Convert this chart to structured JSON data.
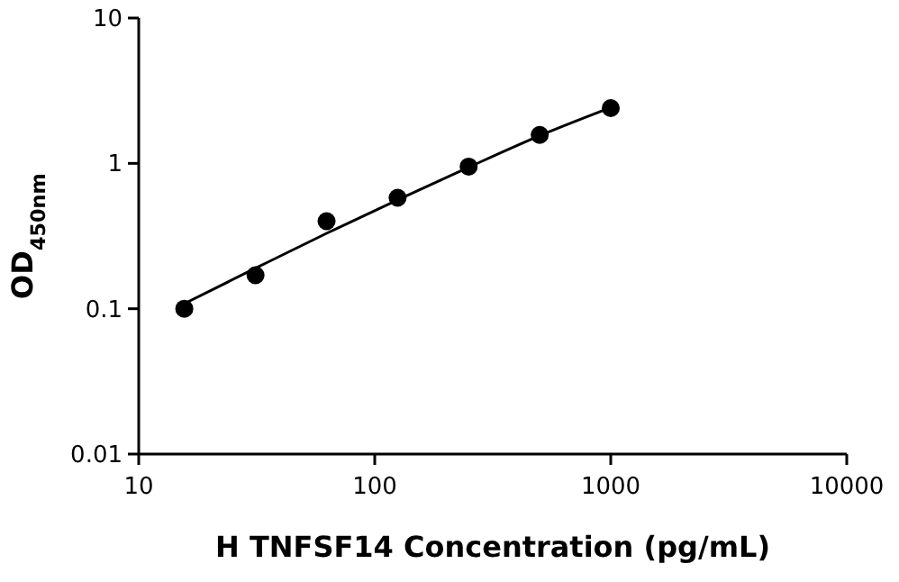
{
  "chart_data": {
    "type": "scatter",
    "xlabel": "H TNFSF14 Concentration (pg/mL)",
    "ylabel": "OD$_{450nm}$",
    "log": "xy",
    "xlim": [
      10,
      10000
    ],
    "ylim": [
      0.01,
      10
    ],
    "xticks": [
      10,
      100,
      1000,
      10000
    ],
    "yticks": [
      0.01,
      0.1,
      1,
      10
    ],
    "grid": false,
    "marker": "circle",
    "series": [
      {
        "color": "#000000",
        "x": [
          15.6,
          31.25,
          62.5,
          125,
          250,
          500,
          1000
        ],
        "values": [
          0.1,
          0.17,
          0.4,
          0.58,
          0.95,
          1.57,
          2.4
        ]
      },
      {
        "type": "line",
        "color": "#000000",
        "line_style": "solid",
        "marker": "none",
        "x": [
          15,
          31.25,
          62.5,
          125,
          250,
          500,
          1000
        ],
        "values": [
          0.105,
          0.19,
          0.33,
          0.56,
          0.94,
          1.55,
          2.42
        ]
      }
    ]
  }
}
